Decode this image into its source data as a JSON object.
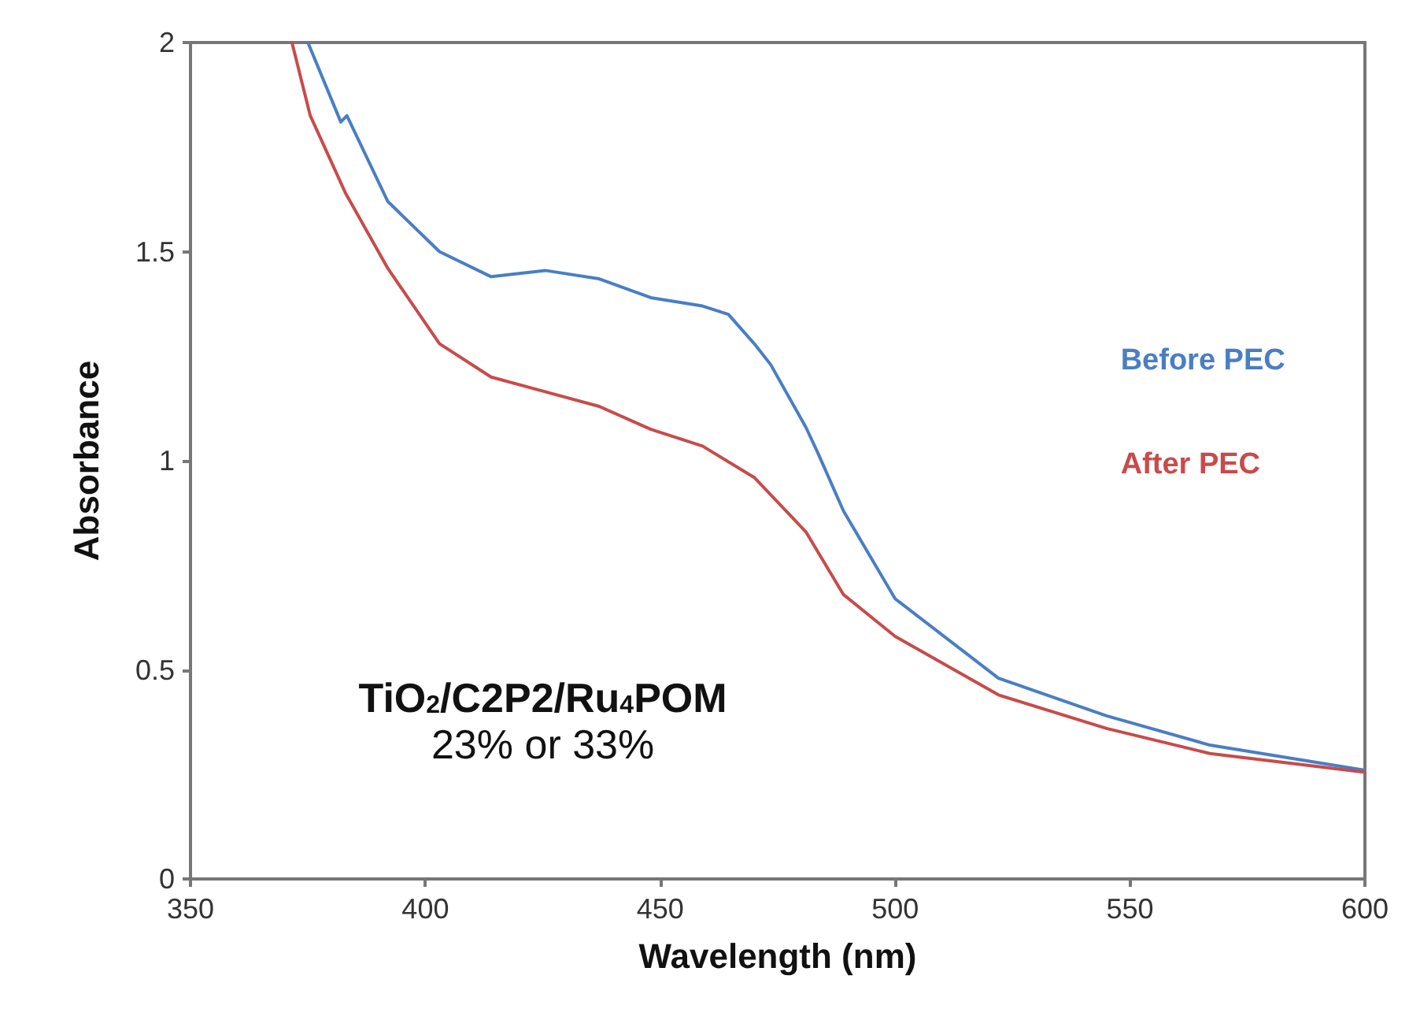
{
  "chart_data": {
    "type": "line",
    "xlabel": "Wavelength (nm)",
    "ylabel": "Absorbance",
    "xlim": [
      350,
      600
    ],
    "xticks": [
      350,
      400,
      450,
      500,
      550,
      600
    ],
    "ylim": [
      0,
      2
    ],
    "yticks": [
      0,
      {
        "value": 0.5,
        "label": "0.5"
      },
      1,
      {
        "value": 1.5,
        "label": "1.5"
      },
      2
    ],
    "grid": false,
    "legend": false,
    "marker": "none",
    "line_style": "solid",
    "series": [
      {
        "name": "Before PEC",
        "color": "#4a7ec4",
        "x": [
          375,
          382,
          383.3,
          392,
          403,
          414,
          425.5,
          437,
          448,
          459,
          464.5,
          470,
          473.5,
          481,
          483.5,
          489,
          500,
          522,
          545,
          567,
          600
        ],
        "values": [
          2.0,
          1.81,
          1.825,
          1.62,
          1.5,
          1.44,
          1.455,
          1.435,
          1.39,
          1.37,
          1.35,
          1.28,
          1.23,
          1.08,
          1.02,
          0.88,
          0.67,
          0.48,
          0.39,
          0.32,
          0.26
        ]
      },
      {
        "name": "After PEC",
        "color": "#c84b4b",
        "x": [
          371.6,
          375.5,
          383,
          392,
          403,
          414,
          425.5,
          437,
          448,
          459,
          470,
          481,
          489,
          500,
          522,
          545,
          567,
          600
        ],
        "values": [
          2.0,
          1.825,
          1.64,
          1.46,
          1.28,
          1.2,
          1.165,
          1.13,
          1.075,
          1.035,
          0.96,
          0.83,
          0.68,
          0.58,
          0.44,
          0.36,
          0.3,
          0.255
        ]
      }
    ],
    "annotations": [
      "TiO$_{2}$/C2P2/Ru$_{4}$POM",
      "23% or 33%"
    ]
  }
}
